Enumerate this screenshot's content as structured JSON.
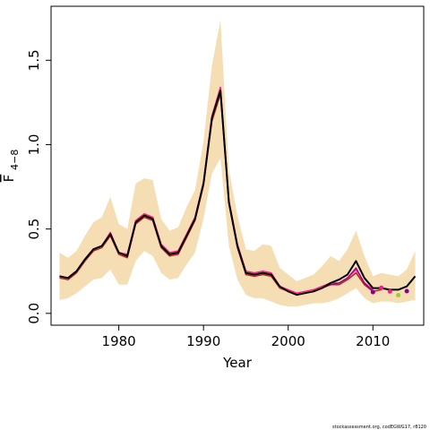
{
  "chart_data": {
    "type": "line",
    "xlabel": "Year",
    "ylabel_main": "F",
    "ylabel_sub": "4−8",
    "xlim": [
      1972,
      2016
    ],
    "ylim": [
      -0.07,
      1.82
    ],
    "xticks": [
      1980,
      1990,
      2000,
      2010
    ],
    "xtick_labels": [
      "1980",
      "1990",
      "2000",
      "2010"
    ],
    "yticks": [
      0.0,
      0.5,
      1.0,
      1.5
    ],
    "ytick_labels": [
      "0.0",
      "0.5",
      "1.0",
      "1.5"
    ],
    "grid": false,
    "legend": "none",
    "band": {
      "color": "#f5deb3",
      "x": [
        1973,
        1974,
        1975,
        1976,
        1977,
        1978,
        1979,
        1980,
        1981,
        1982,
        1983,
        1984,
        1985,
        1986,
        1987,
        1988,
        1989,
        1990,
        1991,
        1992,
        1993,
        1994,
        1995,
        1996,
        1997,
        1998,
        1999,
        2000,
        2001,
        2002,
        2003,
        2004,
        2005,
        2006,
        2007,
        2008,
        2009,
        2010,
        2011,
        2012,
        2013,
        2014,
        2015
      ],
      "upper": [
        0.36,
        0.33,
        0.37,
        0.46,
        0.54,
        0.57,
        0.69,
        0.53,
        0.5,
        0.77,
        0.8,
        0.79,
        0.56,
        0.49,
        0.51,
        0.63,
        0.73,
        1.02,
        1.47,
        1.74,
        0.85,
        0.58,
        0.38,
        0.37,
        0.41,
        0.4,
        0.27,
        0.23,
        0.19,
        0.21,
        0.23,
        0.28,
        0.34,
        0.31,
        0.38,
        0.49,
        0.34,
        0.22,
        0.24,
        0.23,
        0.22,
        0.26,
        0.37
      ],
      "lower": [
        0.08,
        0.09,
        0.12,
        0.16,
        0.2,
        0.21,
        0.26,
        0.17,
        0.17,
        0.31,
        0.37,
        0.34,
        0.24,
        0.2,
        0.21,
        0.29,
        0.36,
        0.56,
        0.83,
        0.92,
        0.4,
        0.2,
        0.11,
        0.09,
        0.09,
        0.07,
        0.05,
        0.04,
        0.04,
        0.05,
        0.06,
        0.06,
        0.07,
        0.09,
        0.12,
        0.15,
        0.09,
        0.06,
        0.07,
        0.07,
        0.06,
        0.07,
        0.08
      ]
    },
    "series": [
      {
        "color": "#000000",
        "width": 2,
        "x": [
          1973,
          1974,
          1975,
          1976,
          1977,
          1978,
          1979,
          1980,
          1981,
          1982,
          1983,
          1984,
          1985,
          1986,
          1987,
          1988,
          1989,
          1990,
          1991,
          1992,
          1993,
          1994,
          1995,
          1996,
          1997,
          1998,
          1999,
          2000,
          2001,
          2002,
          2003,
          2004,
          2005,
          2006,
          2007,
          2008,
          2009,
          2010,
          2011,
          2012,
          2013,
          2014,
          2015
        ],
        "values": [
          0.22,
          0.21,
          0.25,
          0.32,
          0.38,
          0.4,
          0.47,
          0.36,
          0.34,
          0.54,
          0.58,
          0.56,
          0.4,
          0.35,
          0.36,
          0.46,
          0.56,
          0.77,
          1.16,
          1.32,
          0.66,
          0.4,
          0.24,
          0.23,
          0.24,
          0.23,
          0.16,
          0.13,
          0.11,
          0.12,
          0.13,
          0.15,
          0.18,
          0.2,
          0.23,
          0.31,
          0.21,
          0.15,
          0.15,
          0.14,
          0.14,
          0.16,
          0.22
        ]
      },
      {
        "color": "#ff1493",
        "width": 1.5,
        "x": [
          1973,
          1974,
          1975,
          1976,
          1977,
          1978,
          1979,
          1980,
          1981,
          1982,
          1983,
          1984,
          1985,
          1986,
          1987,
          1988,
          1989,
          1990,
          1991,
          1992,
          1993,
          1994,
          1995,
          1996,
          1997,
          1998,
          1999,
          2000,
          2001,
          2002,
          2003,
          2004,
          2005,
          2006,
          2007,
          2008,
          2009,
          2010
        ],
        "values": [
          0.22,
          0.21,
          0.25,
          0.32,
          0.38,
          0.4,
          0.48,
          0.36,
          0.35,
          0.55,
          0.59,
          0.57,
          0.41,
          0.36,
          0.37,
          0.47,
          0.57,
          0.78,
          1.17,
          1.34,
          0.67,
          0.41,
          0.25,
          0.24,
          0.25,
          0.24,
          0.16,
          0.14,
          0.12,
          0.13,
          0.14,
          0.16,
          0.18,
          0.18,
          0.21,
          0.26,
          0.18,
          0.14
        ]
      },
      {
        "color": "#b22222",
        "width": 1.5,
        "x": [
          1973,
          1974,
          1975,
          1976,
          1977,
          1978,
          1979,
          1980,
          1981,
          1982,
          1983,
          1984,
          1985,
          1986,
          1987,
          1988,
          1989,
          1990,
          1991,
          1992,
          1993,
          1994,
          1995,
          1996,
          1997,
          1998,
          1999,
          2000,
          2001,
          2002,
          2003,
          2004,
          2005,
          2006,
          2007,
          2008,
          2009,
          2010,
          2011
        ],
        "values": [
          0.21,
          0.2,
          0.24,
          0.31,
          0.37,
          0.39,
          0.46,
          0.35,
          0.33,
          0.53,
          0.57,
          0.55,
          0.39,
          0.34,
          0.35,
          0.45,
          0.55,
          0.76,
          1.14,
          1.3,
          0.65,
          0.39,
          0.23,
          0.22,
          0.23,
          0.22,
          0.15,
          0.13,
          0.11,
          0.12,
          0.13,
          0.15,
          0.17,
          0.17,
          0.2,
          0.24,
          0.17,
          0.13,
          0.14
        ]
      },
      {
        "color": "#8b008b",
        "width": 1.2,
        "x": [
          1973,
          1974,
          1975,
          1976,
          1977,
          1978,
          1979,
          1980,
          1981,
          1982,
          1983,
          1984,
          1985,
          1986,
          1987,
          1988,
          1989,
          1990,
          1991,
          1992,
          1993,
          1994,
          1995,
          1996,
          1997,
          1998,
          1999,
          2000,
          2001,
          2002,
          2003,
          2004,
          2005,
          2006,
          2007,
          2008,
          2009,
          2010
        ],
        "values": [
          0.22,
          0.21,
          0.25,
          0.32,
          0.38,
          0.4,
          0.47,
          0.36,
          0.34,
          0.54,
          0.58,
          0.56,
          0.4,
          0.35,
          0.36,
          0.46,
          0.56,
          0.77,
          1.16,
          1.32,
          0.66,
          0.4,
          0.24,
          0.23,
          0.24,
          0.23,
          0.16,
          0.13,
          0.11,
          0.12,
          0.13,
          0.15,
          0.17,
          0.18,
          0.21,
          0.27,
          0.18,
          0.13
        ]
      }
    ],
    "end_points": [
      {
        "x": 2010,
        "y": 0.126,
        "color": "#8b008b"
      },
      {
        "x": 2011,
        "y": 0.152,
        "color": "#ff1493"
      },
      {
        "x": 2012,
        "y": 0.13,
        "color": "#ff1493"
      },
      {
        "x": 2013,
        "y": 0.108,
        "color": "#9acd32"
      },
      {
        "x": 2014,
        "y": 0.132,
        "color": "#8b008b"
      }
    ]
  },
  "footer": {
    "note": "stockassessment.org, codEGWG17, r8120"
  }
}
